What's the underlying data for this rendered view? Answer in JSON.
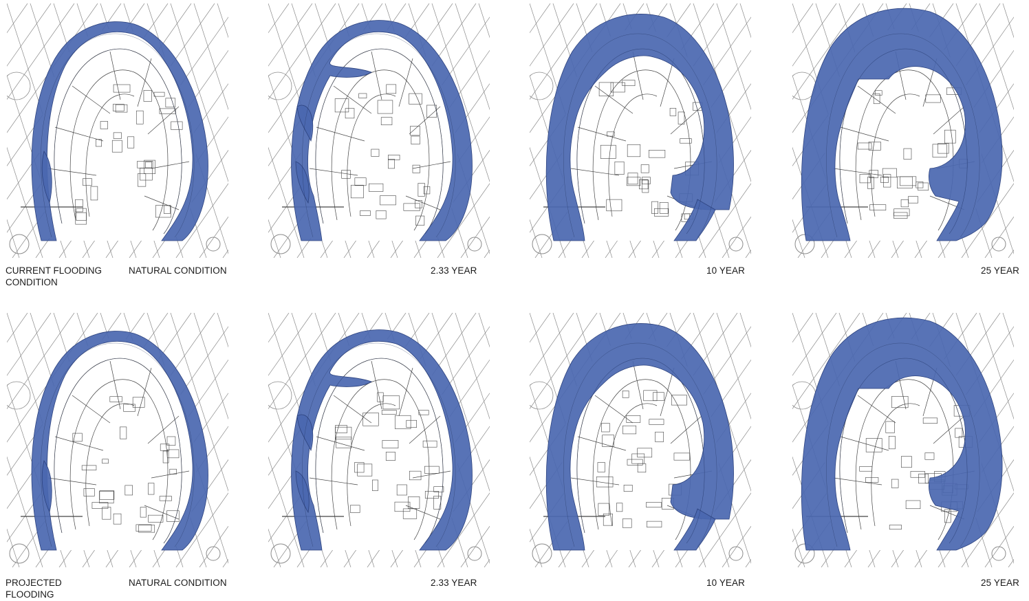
{
  "rows": [
    {
      "row_label": "CURRENT FLOODING CONDITION",
      "panels": [
        {
          "label": "NATURAL CONDITION",
          "flood_level": "natural"
        },
        {
          "label": "2.33 YEAR",
          "flood_level": "y2"
        },
        {
          "label": "10 YEAR",
          "flood_level": "y10"
        },
        {
          "label": "25 YEAR",
          "flood_level": "y25"
        }
      ]
    },
    {
      "row_label": "PROJECTED FLOODING",
      "panels": [
        {
          "label": "NATURAL CONDITION",
          "flood_level": "natural"
        },
        {
          "label": "2.33 YEAR",
          "flood_level": "y2"
        },
        {
          "label": "10 YEAR",
          "flood_level": "y10"
        },
        {
          "label": "25 YEAR",
          "flood_level": "y25"
        }
      ]
    }
  ],
  "colors": {
    "flood": "#4a67b0",
    "flood_edge": "#2c427e",
    "linework": "#8a8a8a",
    "linework_dark": "#444444"
  }
}
